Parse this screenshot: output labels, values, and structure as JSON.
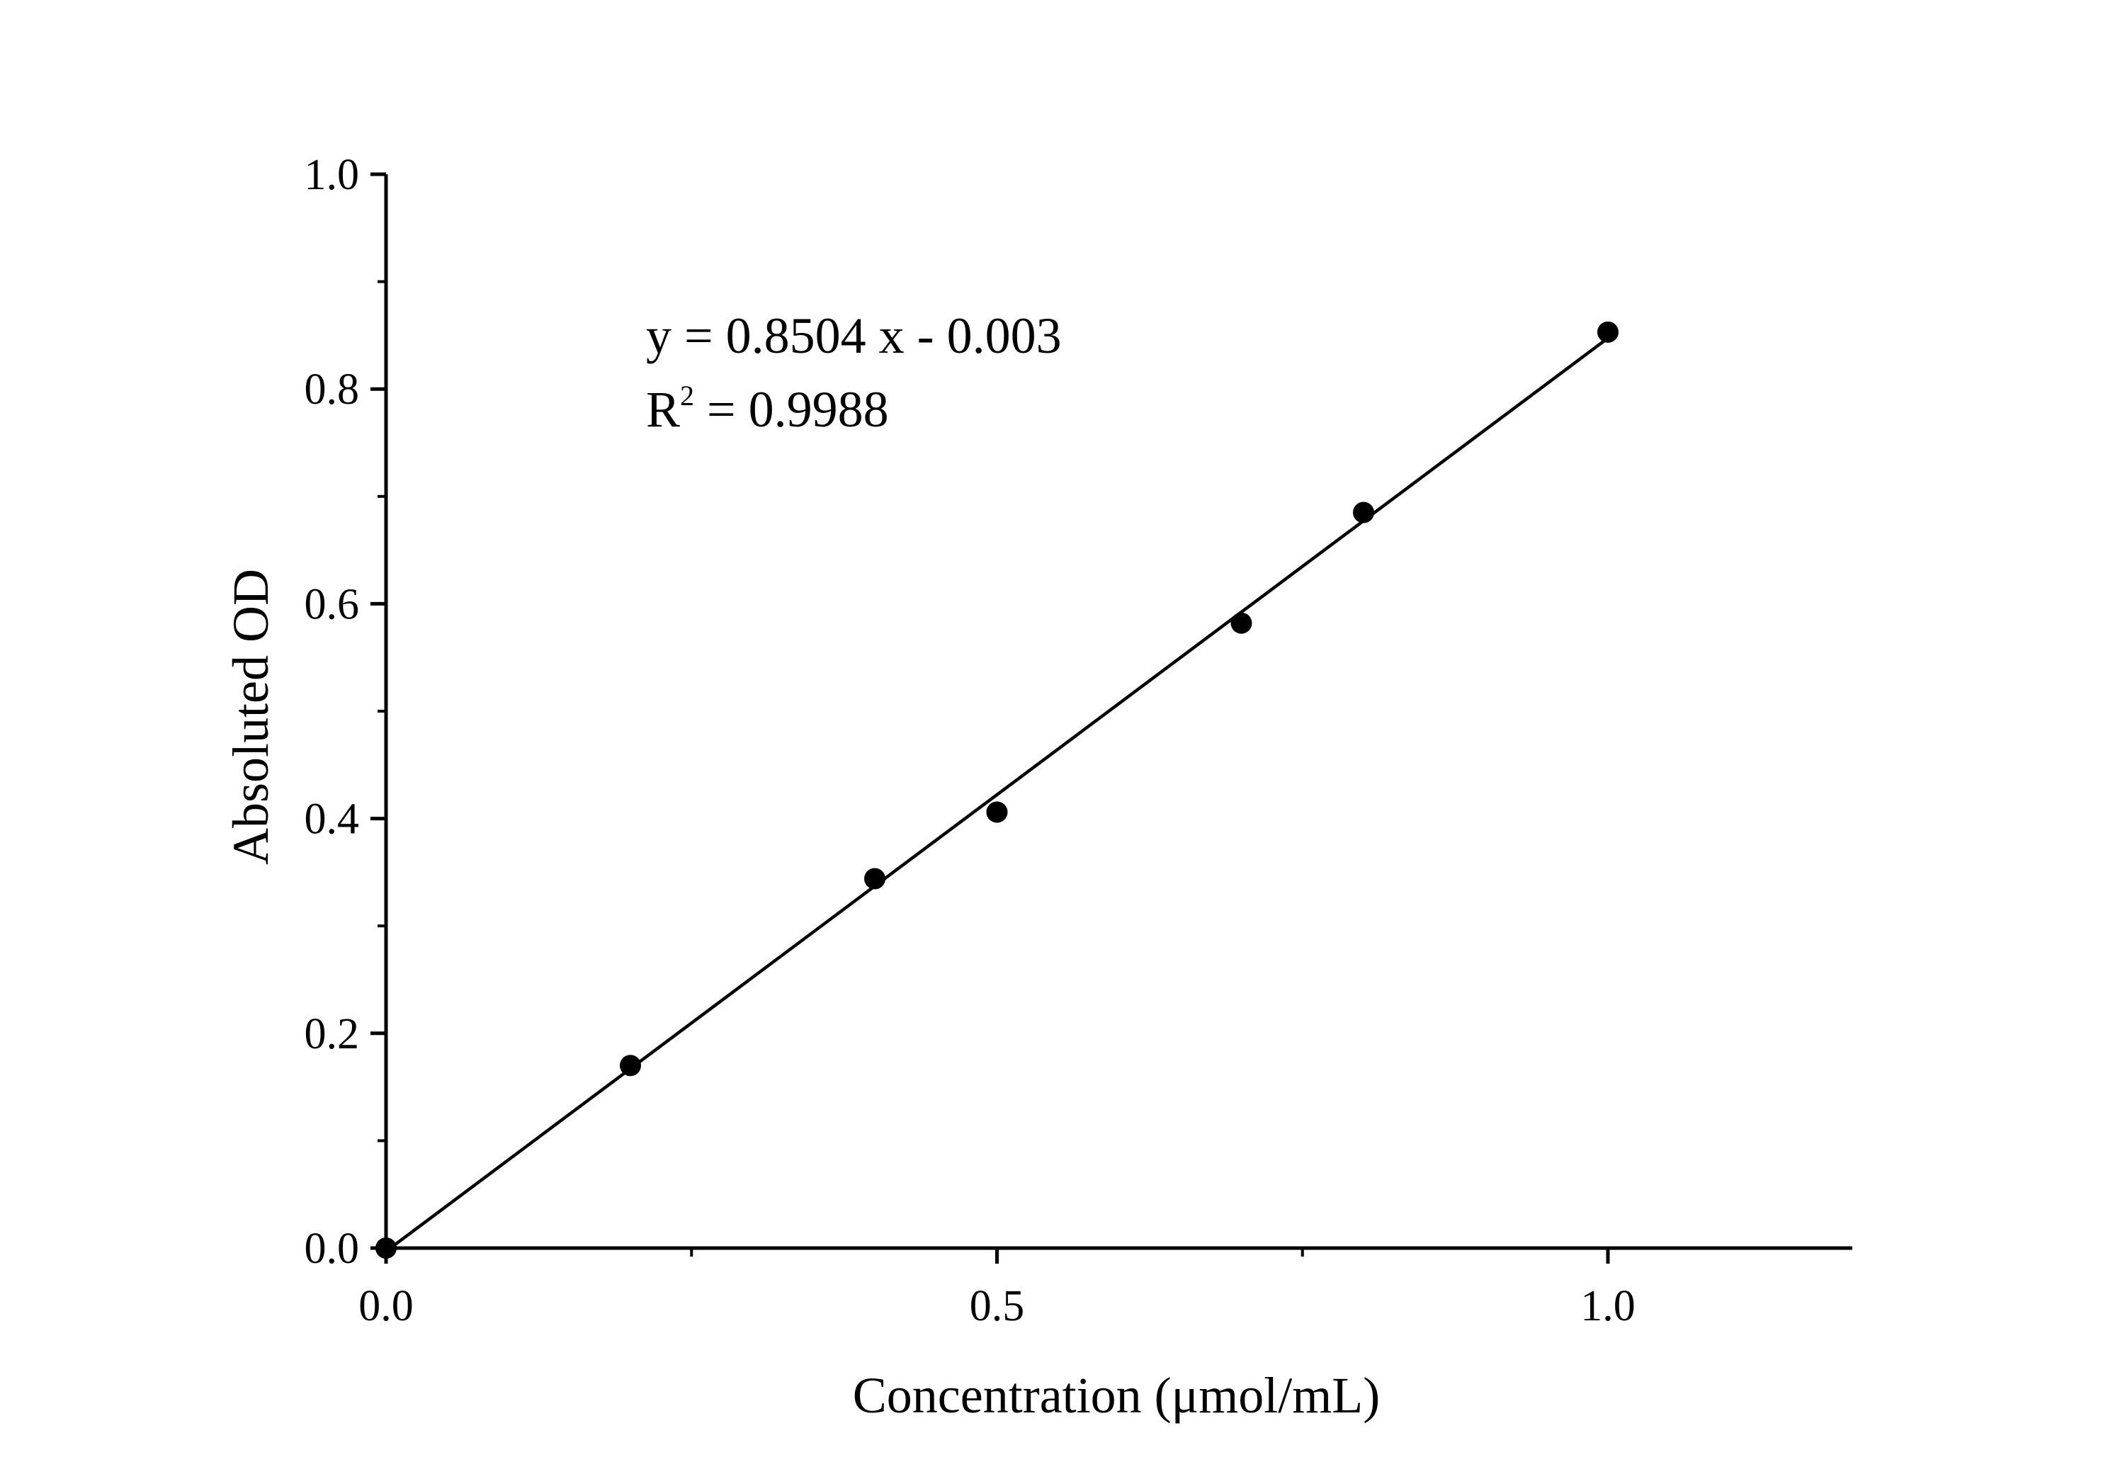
{
  "chart_data": {
    "type": "scatter",
    "xlabel": "Concentration (μmol/mL)",
    "ylabel": "Absoluted OD",
    "xlim": [
      0.0,
      1.2
    ],
    "ylim": [
      0.0,
      1.0
    ],
    "x_ticks": [
      0.0,
      0.5,
      1.0
    ],
    "x_tick_labels": [
      "0.0",
      "0.5",
      "1.0"
    ],
    "x_minor_ticks": [
      0.25,
      0.75
    ],
    "y_ticks": [
      0.0,
      0.2,
      0.4,
      0.6,
      0.8,
      1.0
    ],
    "y_tick_labels": [
      "0.0",
      "0.2",
      "0.4",
      "0.6",
      "0.8",
      "1.0"
    ],
    "y_minor_ticks": [
      0.1,
      0.3,
      0.5,
      0.7,
      0.9
    ],
    "grid": false,
    "series": [
      {
        "x": [
          0.0,
          0.2,
          0.4,
          0.5,
          0.7,
          0.8,
          1.0
        ],
        "y": [
          0.0,
          0.17,
          0.344,
          0.406,
          0.582,
          0.685,
          0.853
        ],
        "color": "#000000"
      }
    ],
    "fit_line": {
      "slope": 0.8504,
      "intercept": -0.003,
      "x_range": [
        0.0,
        1.0
      ],
      "color": "#000000"
    },
    "annotation": {
      "equation_text": "y = 0.8504 x - 0.003",
      "r2_prefix": "R",
      "r2_superscript": "2",
      "r2_suffix": " = 0.9988"
    }
  }
}
